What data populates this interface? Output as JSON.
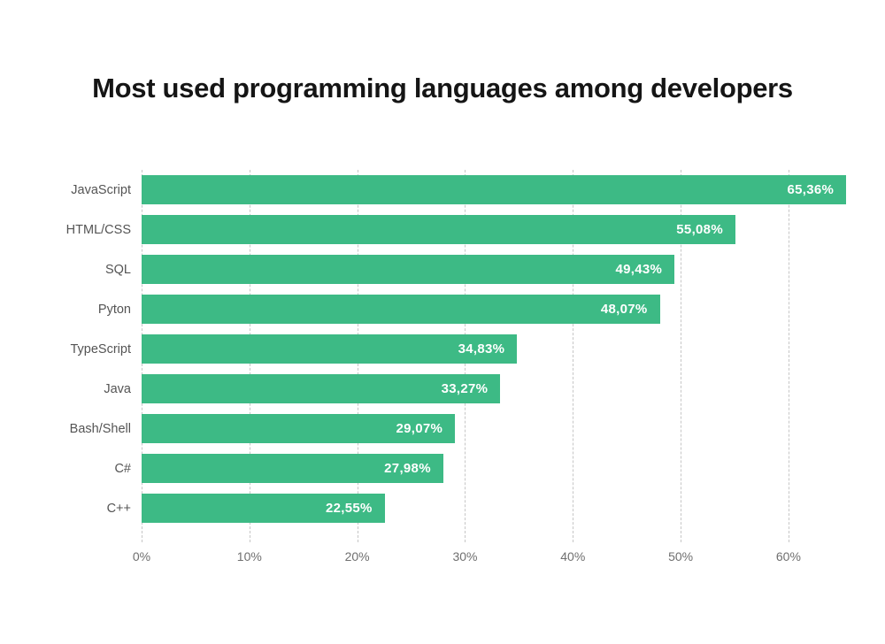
{
  "title": "Most used programming languages among developers",
  "chart_data": {
    "type": "bar",
    "orientation": "horizontal",
    "title": "Most used programming languages among developers",
    "categories": [
      "JavaScript",
      "HTML/CSS",
      "SQL",
      "Pyton",
      "TypeScript",
      "Java",
      "Bash/Shell",
      "C#",
      "C++"
    ],
    "values": [
      65.36,
      55.08,
      49.43,
      48.07,
      34.83,
      33.27,
      29.07,
      27.98,
      22.55
    ],
    "value_labels": [
      "65,36%",
      "55,08%",
      "49,43%",
      "48,07%",
      "34,83%",
      "33,27%",
      "29,07%",
      "27,98%",
      "22,55%"
    ],
    "xlabel": "",
    "ylabel": "",
    "xlim": [
      0,
      66
    ],
    "x_ticks": [
      {
        "value": 0,
        "label": "0%"
      },
      {
        "value": 10,
        "label": "10%"
      },
      {
        "value": 20,
        "label": "20%"
      },
      {
        "value": 30,
        "label": "30%"
      },
      {
        "value": 40,
        "label": "40%"
      },
      {
        "value": 50,
        "label": "50%"
      },
      {
        "value": 60,
        "label": "60%"
      }
    ],
    "grid": "vertical-dashed",
    "legend": "none",
    "colors": {
      "bar": "#3dba85",
      "value_label": "#ffffff",
      "category_label": "#545454",
      "tick_label": "#6f6f6f",
      "gridline": "#c6c6c6",
      "title": "#151515",
      "background": "#ffffff"
    }
  }
}
